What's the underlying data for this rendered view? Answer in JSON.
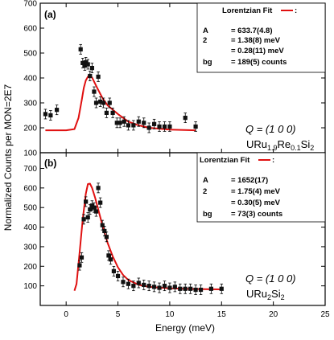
{
  "figure": {
    "ylabel": "Normalized Counts per MON=2E7",
    "xlabel": "Energy (meV)",
    "x_ticks": [
      "0",
      "5",
      "10",
      "15",
      "20",
      "25"
    ]
  },
  "chart_data": [
    {
      "type": "scatter",
      "panel_label": "(a)",
      "xlim": [
        -2.5,
        25
      ],
      "ylim": [
        100,
        700
      ],
      "y_ticks": [
        100,
        200,
        300,
        400,
        500,
        600,
        700
      ],
      "q_label": "Q = (1 0 0)",
      "sample": {
        "base": "URu",
        "sub1": "1.9",
        "mid": "Re",
        "sub2": "0.1",
        "end": "Si",
        "sub3": "2"
      },
      "legend": {
        "title": "Lorentzian Fit",
        "rows": [
          {
            "key": "A",
            "value": "= 633.7(4.8)"
          },
          {
            "key": "2",
            "value": "= 1.38(8) meV"
          },
          {
            "key": "",
            "value": "= 0.28(11) meV"
          },
          {
            "key": "bg",
            "value": "= 189(5) counts"
          }
        ]
      },
      "series": [
        {
          "kind": "points",
          "x": [
            -2.0,
            -1.5,
            -0.9,
            1.4,
            1.6,
            1.8,
            1.9,
            2.1,
            2.3,
            2.5,
            2.7,
            2.9,
            3.1,
            3.3,
            3.6,
            3.9,
            4.2,
            4.5,
            4.9,
            5.2,
            5.6,
            6.0,
            6.5,
            7.0,
            7.5,
            8.0,
            8.5,
            9.0,
            9.5,
            10.0,
            11.5,
            12.5
          ],
          "y": [
            255,
            250,
            272,
            515,
            460,
            450,
            463,
            455,
            408,
            440,
            345,
            300,
            405,
            305,
            300,
            260,
            300,
            260,
            220,
            220,
            225,
            210,
            210,
            225,
            220,
            200,
            215,
            205,
            205,
            205,
            240,
            205
          ]
        },
        {
          "kind": "fit",
          "x": [
            -2.0,
            0.0,
            0.8,
            1.2,
            1.5,
            1.7,
            1.9,
            2.1,
            2.2,
            2.5,
            3.0,
            3.5,
            4.0,
            5.0,
            6.0,
            7.0,
            8.0,
            10.0,
            12.5
          ],
          "y": [
            190,
            190,
            195,
            240,
            310,
            360,
            390,
            405,
            410,
            402,
            360,
            320,
            290,
            255,
            225,
            210,
            200,
            193,
            190
          ]
        }
      ]
    },
    {
      "type": "scatter",
      "panel_label": "(b)",
      "xlim": [
        -2.5,
        25
      ],
      "ylim": [
        0,
        780
      ],
      "y_ticks": [
        100,
        200,
        300,
        400,
        500,
        600,
        700
      ],
      "q_label": "Q = (1 0 0)",
      "sample": {
        "base": "URu",
        "sub1": "2",
        "mid": "",
        "sub2": "",
        "end": "Si",
        "sub3": "2"
      },
      "legend": {
        "title": "Lorentzian Fit",
        "rows": [
          {
            "key": "A",
            "value": "= 1652(17)"
          },
          {
            "key": "2",
            "value": "= 1.75(4) meV"
          },
          {
            "key": "",
            "value": "= 0.30(5) meV"
          },
          {
            "key": "bg",
            "value": "= 73(3) counts"
          }
        ]
      },
      "series": [
        {
          "kind": "points",
          "x": [
            1.3,
            1.5,
            1.7,
            1.9,
            2.1,
            2.3,
            2.5,
            2.7,
            2.9,
            3.1,
            3.3,
            3.5,
            3.7,
            3.9,
            4.1,
            4.3,
            4.6,
            5.0,
            5.5,
            6.0,
            6.5,
            7.0,
            7.5,
            8.0,
            8.5,
            9.0,
            9.5,
            10.0,
            10.5,
            11.0,
            11.5,
            12.0,
            12.5,
            13.0,
            14.0,
            15.0
          ],
          "y": [
            205,
            245,
            440,
            530,
            450,
            490,
            510,
            500,
            480,
            600,
            525,
            410,
            380,
            350,
            255,
            235,
            175,
            150,
            120,
            110,
            100,
            115,
            105,
            100,
            95,
            90,
            100,
            90,
            95,
            85,
            85,
            85,
            80,
            80,
            85,
            85
          ]
        },
        {
          "kind": "fit",
          "x": [
            0.8,
            1.0,
            1.3,
            1.6,
            1.9,
            2.1,
            2.3,
            2.5,
            2.8,
            3.1,
            3.5,
            4.0,
            4.5,
            5.0,
            5.5,
            6.0,
            7.0,
            8.0,
            10.0,
            12.0,
            15.0
          ],
          "y": [
            75,
            110,
            270,
            440,
            570,
            620,
            622,
            600,
            550,
            490,
            410,
            320,
            250,
            195,
            155,
            130,
            105,
            95,
            87,
            84,
            82
          ]
        }
      ]
    }
  ]
}
